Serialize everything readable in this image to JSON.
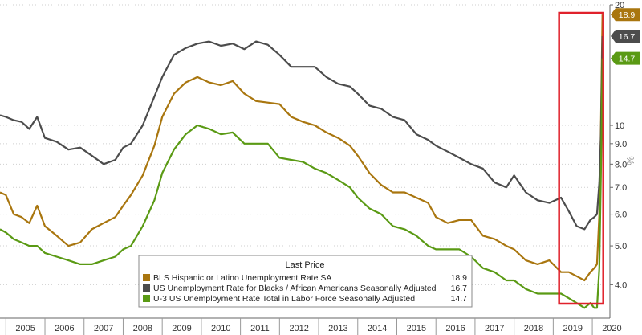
{
  "chart_data": {
    "type": "line",
    "scale": "log",
    "ylim": [
      3.3,
      20
    ],
    "x_range": [
      2004.85,
      2020.45
    ],
    "categories": [
      "2005",
      "2006",
      "2007",
      "2008",
      "2009",
      "2010",
      "2011",
      "2012",
      "2013",
      "2014",
      "2015",
      "2016",
      "2017",
      "2018",
      "2019",
      "2020"
    ],
    "y_ticks": [
      {
        "value": 20,
        "label": "20"
      },
      {
        "value": 10,
        "label": "10"
      },
      {
        "value": 9,
        "label": "9.0"
      },
      {
        "value": 8,
        "label": "8.0"
      },
      {
        "value": 7,
        "label": "7.0"
      },
      {
        "value": 6,
        "label": "6.0"
      },
      {
        "value": 5,
        "label": "5.0"
      },
      {
        "value": 4,
        "label": "4.0"
      }
    ],
    "unit_label": "%",
    "highlight": {
      "x_from": 2019.15,
      "x_to": 2020.28
    },
    "legend": {
      "title": "Last Price",
      "position": "bottom-right"
    },
    "series": [
      {
        "name": "BLS Hispanic or Latino Unemployment Rate SA",
        "color": "#a9760f",
        "last": "18.9",
        "points": [
          [
            2004.85,
            6.8
          ],
          [
            2005.0,
            6.7
          ],
          [
            2005.2,
            6.0
          ],
          [
            2005.4,
            5.9
          ],
          [
            2005.6,
            5.7
          ],
          [
            2005.8,
            6.3
          ],
          [
            2006.0,
            5.6
          ],
          [
            2006.3,
            5.3
          ],
          [
            2006.6,
            5.0
          ],
          [
            2006.9,
            5.1
          ],
          [
            2007.2,
            5.5
          ],
          [
            2007.5,
            5.7
          ],
          [
            2007.8,
            5.9
          ],
          [
            2008.0,
            6.3
          ],
          [
            2008.2,
            6.7
          ],
          [
            2008.5,
            7.5
          ],
          [
            2008.8,
            8.9
          ],
          [
            2009.0,
            10.5
          ],
          [
            2009.3,
            12.0
          ],
          [
            2009.6,
            12.8
          ],
          [
            2009.9,
            13.2
          ],
          [
            2010.2,
            12.8
          ],
          [
            2010.5,
            12.6
          ],
          [
            2010.8,
            12.9
          ],
          [
            2011.1,
            12.0
          ],
          [
            2011.4,
            11.5
          ],
          [
            2011.7,
            11.4
          ],
          [
            2012.0,
            11.3
          ],
          [
            2012.3,
            10.5
          ],
          [
            2012.6,
            10.2
          ],
          [
            2012.9,
            10.0
          ],
          [
            2013.2,
            9.6
          ],
          [
            2013.5,
            9.3
          ],
          [
            2013.8,
            8.9
          ],
          [
            2014.0,
            8.4
          ],
          [
            2014.3,
            7.6
          ],
          [
            2014.6,
            7.1
          ],
          [
            2014.9,
            6.8
          ],
          [
            2015.2,
            6.8
          ],
          [
            2015.5,
            6.6
          ],
          [
            2015.8,
            6.4
          ],
          [
            2016.0,
            5.9
          ],
          [
            2016.3,
            5.7
          ],
          [
            2016.6,
            5.8
          ],
          [
            2016.9,
            5.8
          ],
          [
            2017.2,
            5.3
          ],
          [
            2017.5,
            5.2
          ],
          [
            2017.8,
            5.0
          ],
          [
            2018.0,
            4.9
          ],
          [
            2018.3,
            4.6
          ],
          [
            2018.6,
            4.5
          ],
          [
            2018.9,
            4.6
          ],
          [
            2019.2,
            4.3
          ],
          [
            2019.4,
            4.3
          ],
          [
            2019.6,
            4.2
          ],
          [
            2019.8,
            4.1
          ],
          [
            2019.95,
            4.3
          ],
          [
            2020.05,
            4.4
          ],
          [
            2020.12,
            4.5
          ],
          [
            2020.18,
            6.0
          ],
          [
            2020.22,
            10.0
          ],
          [
            2020.26,
            18.9
          ]
        ]
      },
      {
        "name": "US Unemployment Rate for Blacks / African Americans Seasonally Adjusted",
        "color": "#4c4c4c",
        "last": "16.7",
        "points": [
          [
            2004.85,
            10.6
          ],
          [
            2005.0,
            10.5
          ],
          [
            2005.2,
            10.3
          ],
          [
            2005.4,
            10.2
          ],
          [
            2005.6,
            9.8
          ],
          [
            2005.8,
            10.5
          ],
          [
            2006.0,
            9.3
          ],
          [
            2006.3,
            9.1
          ],
          [
            2006.6,
            8.7
          ],
          [
            2006.9,
            8.8
          ],
          [
            2007.2,
            8.4
          ],
          [
            2007.5,
            8.0
          ],
          [
            2007.8,
            8.2
          ],
          [
            2008.0,
            8.8
          ],
          [
            2008.2,
            9.0
          ],
          [
            2008.5,
            10.0
          ],
          [
            2008.8,
            11.8
          ],
          [
            2009.0,
            13.2
          ],
          [
            2009.3,
            15.0
          ],
          [
            2009.6,
            15.6
          ],
          [
            2009.9,
            16.0
          ],
          [
            2010.2,
            16.2
          ],
          [
            2010.5,
            15.8
          ],
          [
            2010.8,
            16.0
          ],
          [
            2011.1,
            15.5
          ],
          [
            2011.4,
            16.2
          ],
          [
            2011.7,
            15.9
          ],
          [
            2012.0,
            15.0
          ],
          [
            2012.3,
            14.0
          ],
          [
            2012.6,
            14.0
          ],
          [
            2012.9,
            14.0
          ],
          [
            2013.2,
            13.2
          ],
          [
            2013.5,
            12.7
          ],
          [
            2013.8,
            12.5
          ],
          [
            2014.0,
            12.0
          ],
          [
            2014.3,
            11.2
          ],
          [
            2014.6,
            11.0
          ],
          [
            2014.9,
            10.5
          ],
          [
            2015.2,
            10.3
          ],
          [
            2015.5,
            9.5
          ],
          [
            2015.8,
            9.2
          ],
          [
            2016.0,
            8.9
          ],
          [
            2016.3,
            8.6
          ],
          [
            2016.6,
            8.3
          ],
          [
            2016.9,
            8.0
          ],
          [
            2017.2,
            7.8
          ],
          [
            2017.5,
            7.2
          ],
          [
            2017.8,
            7.0
          ],
          [
            2018.0,
            7.5
          ],
          [
            2018.3,
            6.8
          ],
          [
            2018.6,
            6.5
          ],
          [
            2018.9,
            6.4
          ],
          [
            2019.2,
            6.6
          ],
          [
            2019.4,
            6.1
          ],
          [
            2019.6,
            5.6
          ],
          [
            2019.8,
            5.5
          ],
          [
            2019.95,
            5.8
          ],
          [
            2020.05,
            5.9
          ],
          [
            2020.12,
            6.0
          ],
          [
            2020.18,
            7.2
          ],
          [
            2020.22,
            9.5
          ],
          [
            2020.26,
            16.7
          ]
        ]
      },
      {
        "name": "U-3 US Unemployment Rate Total in Labor Force Seasonally Adjusted",
        "color": "#5a9a14",
        "last": "14.7",
        "points": [
          [
            2004.85,
            5.5
          ],
          [
            2005.0,
            5.4
          ],
          [
            2005.2,
            5.2
          ],
          [
            2005.4,
            5.1
          ],
          [
            2005.6,
            5.0
          ],
          [
            2005.8,
            5.0
          ],
          [
            2006.0,
            4.8
          ],
          [
            2006.3,
            4.7
          ],
          [
            2006.6,
            4.6
          ],
          [
            2006.9,
            4.5
          ],
          [
            2007.2,
            4.5
          ],
          [
            2007.5,
            4.6
          ],
          [
            2007.8,
            4.7
          ],
          [
            2008.0,
            4.9
          ],
          [
            2008.2,
            5.0
          ],
          [
            2008.5,
            5.6
          ],
          [
            2008.8,
            6.5
          ],
          [
            2009.0,
            7.6
          ],
          [
            2009.3,
            8.7
          ],
          [
            2009.6,
            9.5
          ],
          [
            2009.9,
            10.0
          ],
          [
            2010.2,
            9.8
          ],
          [
            2010.5,
            9.5
          ],
          [
            2010.8,
            9.6
          ],
          [
            2011.1,
            9.0
          ],
          [
            2011.4,
            9.0
          ],
          [
            2011.7,
            9.0
          ],
          [
            2012.0,
            8.3
          ],
          [
            2012.3,
            8.2
          ],
          [
            2012.6,
            8.1
          ],
          [
            2012.9,
            7.8
          ],
          [
            2013.2,
            7.6
          ],
          [
            2013.5,
            7.3
          ],
          [
            2013.8,
            7.0
          ],
          [
            2014.0,
            6.6
          ],
          [
            2014.3,
            6.2
          ],
          [
            2014.6,
            6.0
          ],
          [
            2014.9,
            5.6
          ],
          [
            2015.2,
            5.5
          ],
          [
            2015.5,
            5.3
          ],
          [
            2015.8,
            5.0
          ],
          [
            2016.0,
            4.9
          ],
          [
            2016.3,
            4.9
          ],
          [
            2016.6,
            4.9
          ],
          [
            2016.9,
            4.7
          ],
          [
            2017.2,
            4.4
          ],
          [
            2017.5,
            4.3
          ],
          [
            2017.8,
            4.1
          ],
          [
            2018.0,
            4.1
          ],
          [
            2018.3,
            3.9
          ],
          [
            2018.6,
            3.8
          ],
          [
            2018.9,
            3.8
          ],
          [
            2019.2,
            3.8
          ],
          [
            2019.4,
            3.7
          ],
          [
            2019.6,
            3.6
          ],
          [
            2019.8,
            3.5
          ],
          [
            2019.95,
            3.6
          ],
          [
            2020.05,
            3.5
          ],
          [
            2020.12,
            3.5
          ],
          [
            2020.18,
            4.4
          ],
          [
            2020.22,
            7.5
          ],
          [
            2020.26,
            14.7
          ]
        ]
      }
    ]
  }
}
